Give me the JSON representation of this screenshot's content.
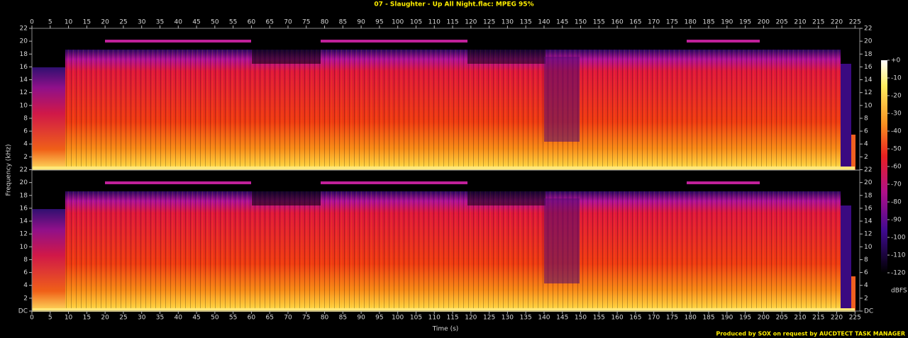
{
  "chart_data": {
    "type": "spectrogram",
    "title": "07 - Slaughter - Up All Night.flac: MPEG 95%",
    "xlabel": "Time (s)",
    "ylabel": "Frequency (kHz)",
    "channels": 2,
    "xlim": [
      0,
      226.3
    ],
    "xticks": [
      0,
      5,
      10,
      15,
      20,
      25,
      30,
      35,
      40,
      45,
      50,
      55,
      60,
      65,
      70,
      75,
      80,
      85,
      90,
      95,
      100,
      105,
      110,
      115,
      120,
      125,
      130,
      135,
      140,
      145,
      150,
      155,
      160,
      165,
      170,
      175,
      180,
      185,
      190,
      195,
      200,
      205,
      210,
      215,
      220,
      225
    ],
    "ylim": [
      0,
      22
    ],
    "yticks": [
      {
        "value": 0,
        "label": "DC"
      },
      2,
      4,
      6,
      8,
      10,
      12,
      14,
      16,
      18,
      20,
      22
    ],
    "clim": [
      -120,
      0
    ],
    "cticks": [
      {
        "value": 0,
        "label": "+0"
      },
      -10,
      -20,
      -30,
      -40,
      -50,
      -60,
      -70,
      -80,
      -90,
      -100,
      -110,
      -120
    ],
    "clabel": "dBFS",
    "credit": "Produced by SOX on request by AUCDTECT TASK MANAGER"
  }
}
